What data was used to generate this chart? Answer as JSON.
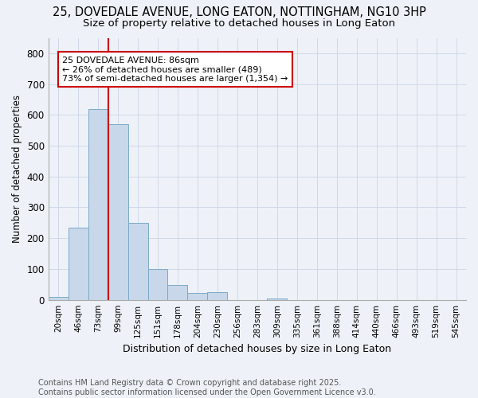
{
  "title": "25, DOVEDALE AVENUE, LONG EATON, NOTTINGHAM, NG10 3HP",
  "subtitle": "Size of property relative to detached houses in Long Eaton",
  "xlabel": "Distribution of detached houses by size in Long Eaton",
  "ylabel": "Number of detached properties",
  "bar_color": "#c8d8ea",
  "bar_edge_color": "#7aaac8",
  "background_color": "#eef2f8",
  "categories": [
    "20sqm",
    "46sqm",
    "73sqm",
    "99sqm",
    "125sqm",
    "151sqm",
    "178sqm",
    "204sqm",
    "230sqm",
    "256sqm",
    "283sqm",
    "309sqm",
    "335sqm",
    "361sqm",
    "388sqm",
    "414sqm",
    "440sqm",
    "466sqm",
    "493sqm",
    "519sqm",
    "545sqm"
  ],
  "values": [
    10,
    235,
    620,
    570,
    250,
    100,
    48,
    22,
    25,
    0,
    0,
    5,
    0,
    0,
    0,
    0,
    0,
    0,
    0,
    0,
    0
  ],
  "ylim": [
    0,
    850
  ],
  "yticks": [
    0,
    100,
    200,
    300,
    400,
    500,
    600,
    700,
    800
  ],
  "vline_color": "#cc0000",
  "annotation_text": "25 DOVEDALE AVENUE: 86sqm\n← 26% of detached houses are smaller (489)\n73% of semi-detached houses are larger (1,354) →",
  "annotation_box_color": "#ffffff",
  "annotation_box_edge": "#cc0000",
  "footer_line1": "Contains HM Land Registry data © Crown copyright and database right 2025.",
  "footer_line2": "Contains public sector information licensed under the Open Government Licence v3.0.",
  "title_fontsize": 10.5,
  "subtitle_fontsize": 9.5,
  "footer_fontsize": 7,
  "grid_color": "#d0d8e8"
}
